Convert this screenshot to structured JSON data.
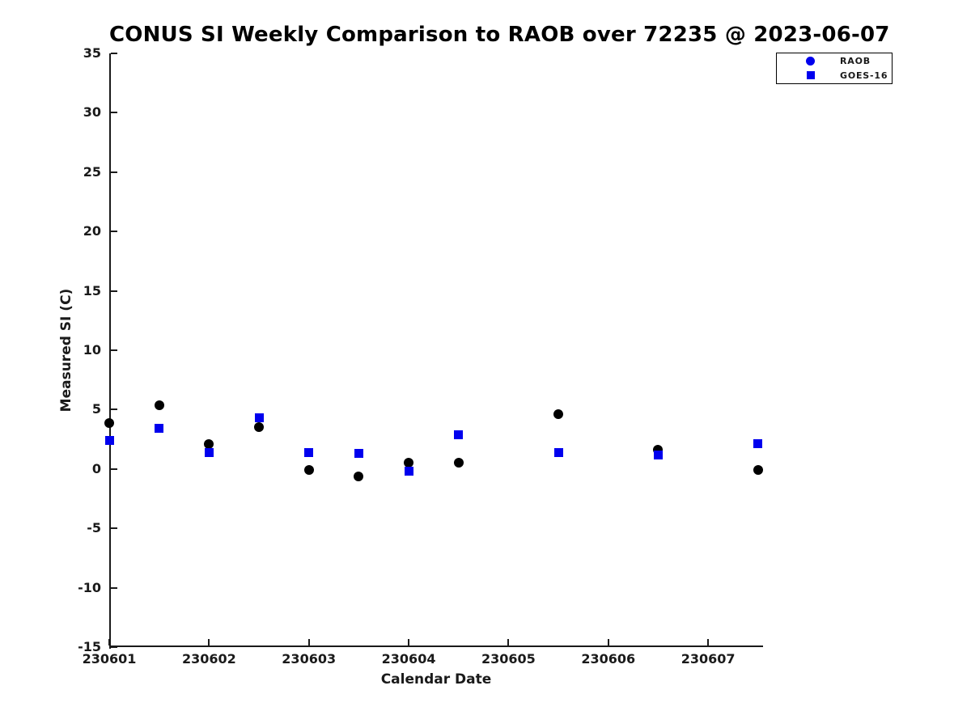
{
  "chart_data": {
    "type": "scatter",
    "title": "CONUS SI Weekly Comparison to RAOB over 72235 @ 2023-06-07",
    "xlabel": "Calendar Date",
    "ylabel": "Measured SI (C)",
    "xlim": [
      230601,
      230607.55
    ],
    "ylim": [
      -15,
      35
    ],
    "x_ticks": [
      230601,
      230602,
      230603,
      230604,
      230605,
      230606,
      230607
    ],
    "y_ticks": [
      -15,
      -10,
      -5,
      0,
      5,
      10,
      15,
      20,
      25,
      30,
      35
    ],
    "grid": false,
    "legend": {
      "position": "top-right",
      "entries": [
        "RAOB",
        "GOES-16"
      ]
    },
    "series": [
      {
        "name": "RAOB",
        "marker": "circle",
        "color": "#000000",
        "legend_marker_color": "#0000ee",
        "x": [
          230601,
          230601.5,
          230602,
          230602.5,
          230603,
          230603.5,
          230604,
          230604.5,
          230605.5,
          230606.5,
          230607.5
        ],
        "y": [
          3.9,
          5.4,
          2.1,
          3.5,
          -0.1,
          -0.6,
          0.5,
          0.5,
          4.6,
          1.6,
          -0.1
        ]
      },
      {
        "name": "GOES-16",
        "marker": "square",
        "color": "#0000ee",
        "legend_marker_color": "#0000ee",
        "x": [
          230601,
          230601.5,
          230602,
          230602.5,
          230603,
          230603.5,
          230604,
          230604.5,
          230605.5,
          230606.5,
          230607.5
        ],
        "y": [
          2.4,
          3.4,
          1.4,
          4.3,
          1.4,
          1.3,
          -0.2,
          2.9,
          1.4,
          1.2,
          2.1
        ]
      }
    ]
  },
  "colors": {
    "accent_blue": "#0000ee",
    "marker_black": "#000000",
    "text": "#1a1a1a",
    "background": "#ffffff"
  }
}
